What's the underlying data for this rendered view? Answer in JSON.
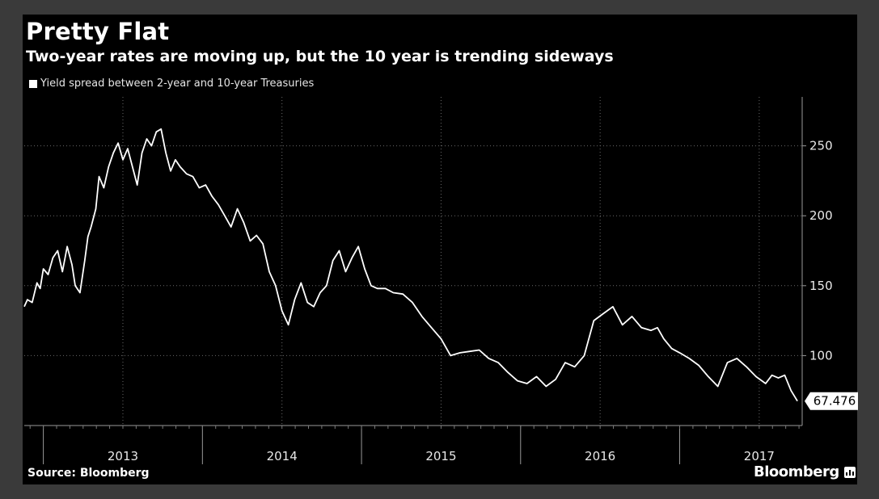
{
  "title": "Pretty Flat",
  "subtitle": "Two-year rates are moving up, but the 10 year is trending sideways",
  "source": "Source: Bloomberg",
  "brand": "Bloomberg",
  "colors": {
    "background": "#000000",
    "frame": "#3a3a3a",
    "line": "#ffffff",
    "grid": "#6a6a6a",
    "text": "#ffffff"
  },
  "chart_data": {
    "type": "line",
    "title": "Pretty Flat",
    "subtitle": "Two-year rates are moving up, but the 10 year is trending sideways",
    "xlabel": "",
    "ylabel": "",
    "ylim": [
      50,
      285
    ],
    "xlim": [
      2012.88,
      2017.77
    ],
    "yticks": [
      100,
      150,
      200,
      250
    ],
    "xticks": [
      2013,
      2014,
      2015,
      2016,
      2017
    ],
    "xtick_labels": [
      "2013",
      "2014",
      "2015",
      "2016",
      "2017"
    ],
    "grid": true,
    "legend": "top-left",
    "last_value_label": "67.476",
    "series": [
      {
        "name": "Yield spread between 2-year and 10-year Treasuries",
        "x": [
          2012.88,
          2012.9,
          2012.93,
          2012.96,
          2012.98,
          2013.0,
          2013.03,
          2013.06,
          2013.09,
          2013.12,
          2013.15,
          2013.18,
          2013.2,
          2013.23,
          2013.26,
          2013.28,
          2013.3,
          2013.33,
          2013.35,
          2013.38,
          2013.41,
          2013.44,
          2013.47,
          2013.5,
          2013.53,
          2013.56,
          2013.59,
          2013.62,
          2013.65,
          2013.68,
          2013.71,
          2013.74,
          2013.77,
          2013.8,
          2013.83,
          2013.86,
          2013.9,
          2013.94,
          2013.98,
          2014.02,
          2014.06,
          2014.1,
          2014.14,
          2014.18,
          2014.22,
          2014.26,
          2014.3,
          2014.34,
          2014.38,
          2014.42,
          2014.46,
          2014.5,
          2014.54,
          2014.58,
          2014.62,
          2014.66,
          2014.7,
          2014.74,
          2014.78,
          2014.82,
          2014.86,
          2014.9,
          2014.94,
          2014.98,
          2015.02,
          2015.06,
          2015.1,
          2015.15,
          2015.2,
          2015.26,
          2015.32,
          2015.38,
          2015.44,
          2015.5,
          2015.56,
          2015.62,
          2015.68,
          2015.74,
          2015.8,
          2015.86,
          2015.92,
          2015.98,
          2016.04,
          2016.1,
          2016.16,
          2016.22,
          2016.28,
          2016.34,
          2016.4,
          2016.46,
          2016.52,
          2016.58,
          2016.64,
          2016.7,
          2016.76,
          2016.82,
          2016.86,
          2016.9,
          2016.95,
          2017.0,
          2017.06,
          2017.12,
          2017.18,
          2017.24,
          2017.3,
          2017.36,
          2017.42,
          2017.48,
          2017.54,
          2017.58,
          2017.62,
          2017.66,
          2017.7,
          2017.74
        ],
        "values": [
          135,
          140,
          138,
          152,
          148,
          162,
          158,
          170,
          175,
          160,
          178,
          165,
          150,
          145,
          168,
          185,
          192,
          205,
          228,
          220,
          235,
          245,
          252,
          240,
          248,
          235,
          222,
          245,
          255,
          250,
          260,
          262,
          245,
          232,
          240,
          235,
          230,
          228,
          220,
          222,
          214,
          208,
          200,
          192,
          205,
          195,
          182,
          186,
          180,
          160,
          150,
          132,
          122,
          140,
          152,
          138,
          135,
          145,
          150,
          168,
          175,
          160,
          170,
          178,
          162,
          150,
          148,
          148,
          145,
          144,
          138,
          128,
          120,
          112,
          100,
          102,
          103,
          104,
          98,
          95,
          88,
          82,
          80,
          85,
          78,
          83,
          95,
          92,
          100,
          125,
          130,
          135,
          122,
          128,
          120,
          118,
          120,
          112,
          105,
          102,
          98,
          93,
          85,
          78,
          95,
          98,
          92,
          85,
          80,
          86,
          84,
          86,
          75,
          67.476
        ]
      }
    ]
  }
}
